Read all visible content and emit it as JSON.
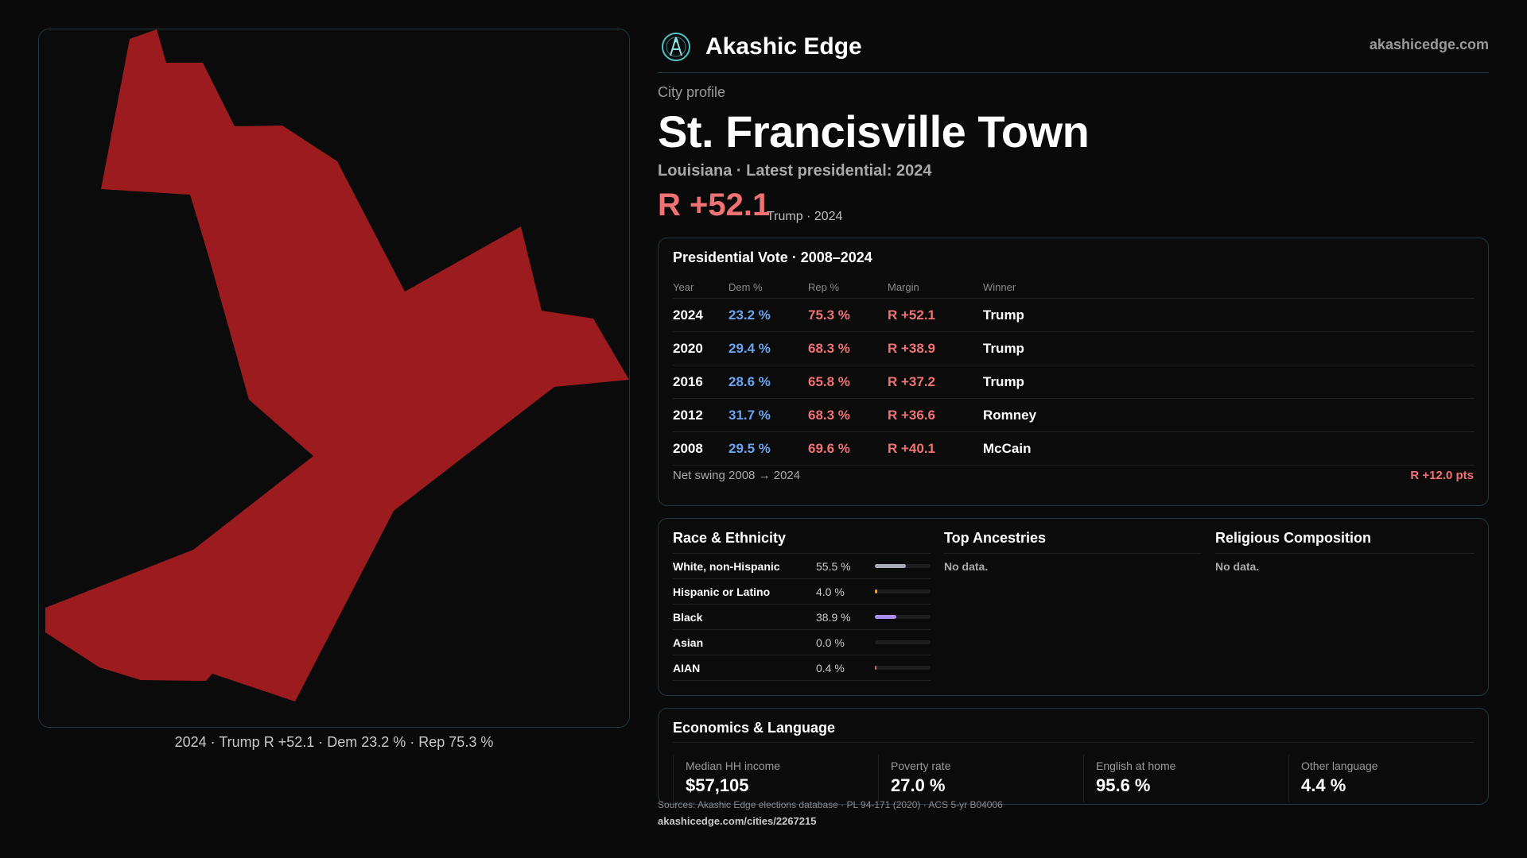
{
  "map": {
    "caption": "2024 · Trump R +52.1 · Dem 23.2 % · Rep 75.3 %",
    "fill_color": "#9b1b1e"
  },
  "brand": {
    "name": "Akashic Edge",
    "url": "akashicedge.com",
    "logo_icon": "akashic-edge-logo-icon"
  },
  "profile": {
    "eyebrow": "City profile",
    "title": "St. Francisville Town",
    "subtitle": "Louisiana · Latest presidential: 2024",
    "margin": "R +52.1",
    "margin_note": "Trump · 2024"
  },
  "vote": {
    "title": "Presidential Vote · 2008–2024",
    "headers": [
      "Year",
      "Dem %",
      "Rep %",
      "Margin",
      "Winner"
    ],
    "rows": [
      {
        "year": "2024",
        "dem": "23.2 %",
        "rep": "75.3 %",
        "margin": "R +52.1",
        "winner": "Trump"
      },
      {
        "year": "2020",
        "dem": "29.4 %",
        "rep": "68.3 %",
        "margin": "R +38.9",
        "winner": "Trump"
      },
      {
        "year": "2016",
        "dem": "28.6 %",
        "rep": "65.8 %",
        "margin": "R +37.2",
        "winner": "Trump"
      },
      {
        "year": "2012",
        "dem": "31.7 %",
        "rep": "68.3 %",
        "margin": "R +36.6",
        "winner": "Romney"
      },
      {
        "year": "2008",
        "dem": "29.5 %",
        "rep": "69.6 %",
        "margin": "R +40.1",
        "winner": "McCain"
      }
    ],
    "swing_label": "Net swing 2008 → 2024",
    "swing_value": "R +12.0 pts"
  },
  "race": {
    "title": "Race & Ethnicity",
    "rows": [
      {
        "label": "White, non-Hispanic",
        "pct": "55.5 %",
        "fraction": 0.555,
        "color": "#a6acb8"
      },
      {
        "label": "Hispanic or Latino",
        "pct": "4.0 %",
        "fraction": 0.04,
        "color": "#e0a24a"
      },
      {
        "label": "Black",
        "pct": "38.9 %",
        "fraction": 0.389,
        "color": "#a98ef0"
      },
      {
        "label": "Asian",
        "pct": "0.0 %",
        "fraction": 0.0,
        "color": "#5fc7c7"
      },
      {
        "label": "AIAN",
        "pct": "0.4 %",
        "fraction": 0.004,
        "color": "#c07070"
      }
    ]
  },
  "ancestries": {
    "title": "Top Ancestries",
    "empty": "No data."
  },
  "religion": {
    "title": "Religious Composition",
    "empty": "No data."
  },
  "economics": {
    "title": "Economics & Language",
    "stats": [
      {
        "label": "Median HH income",
        "value": "$57,105"
      },
      {
        "label": "Poverty rate",
        "value": "27.0 %"
      },
      {
        "label": "English at home",
        "value": "95.6 %"
      },
      {
        "label": "Other language",
        "value": "4.4 %"
      }
    ]
  },
  "footer": {
    "sources": "Sources: Akashic Edge elections database · PL 94-171 (2020) · ACS 5-yr B04006",
    "url": "akashicedge.com/cities/2267215"
  }
}
